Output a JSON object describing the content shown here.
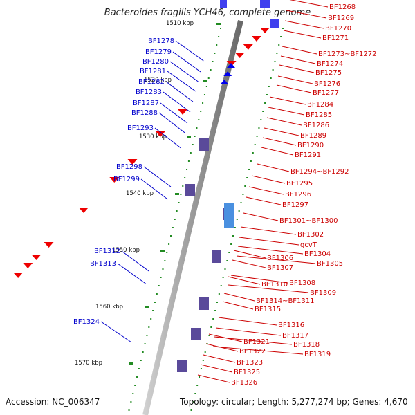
{
  "title": "Bacteroides fragilis YCH46, complete genome",
  "footer": {
    "accession": "Accession: NC_006347",
    "topology": "Topology: circular; Length: 5,277,274 bp; Genes: 4,670"
  },
  "scale_labels": [
    "1510 kbp",
    "1520 kbp",
    "1530 kbp",
    "1540 kbp",
    "1550 kbp",
    "1560 kbp",
    "1570 kbp"
  ],
  "left_labels": [
    "BF1278",
    "BF1279",
    "BF1280",
    "BF1281",
    "BF1282",
    "BF1283",
    "BF1287",
    "BF1288",
    "BF1293",
    "BF1298",
    "BF1299",
    "BF1312",
    "BF1313",
    "BF1324"
  ],
  "right_labels": [
    "BF1268",
    "BF1269",
    "BF1270",
    "BF1271",
    "BF1273~BF1272",
    "BF1274",
    "BF1275",
    "BF1276",
    "BF1277",
    "BF1284",
    "BF1285",
    "BF1286",
    "BF1289",
    "BF1290",
    "BF1291",
    "BF1294~BF1292",
    "BF1295",
    "BF1296",
    "BF1297",
    "BF1301~BF1300",
    "BF1302",
    "gcvT",
    "BF1304",
    "BF1305",
    "BF1306",
    "BF1307",
    "BF1308",
    "BF1310",
    "BF1309",
    "BF1314~BF1311",
    "BF1315",
    "BF1316",
    "BF1317",
    "BF1318",
    "BF1319",
    "BF1321",
    "BF1322",
    "BF1323",
    "BF1325",
    "BF1326"
  ],
  "colors": {
    "left_labels": "#0000cc",
    "right_labels": "#cc0000",
    "scale_text": "#111111",
    "tick": "#228b22",
    "backbone": "#888888"
  }
}
